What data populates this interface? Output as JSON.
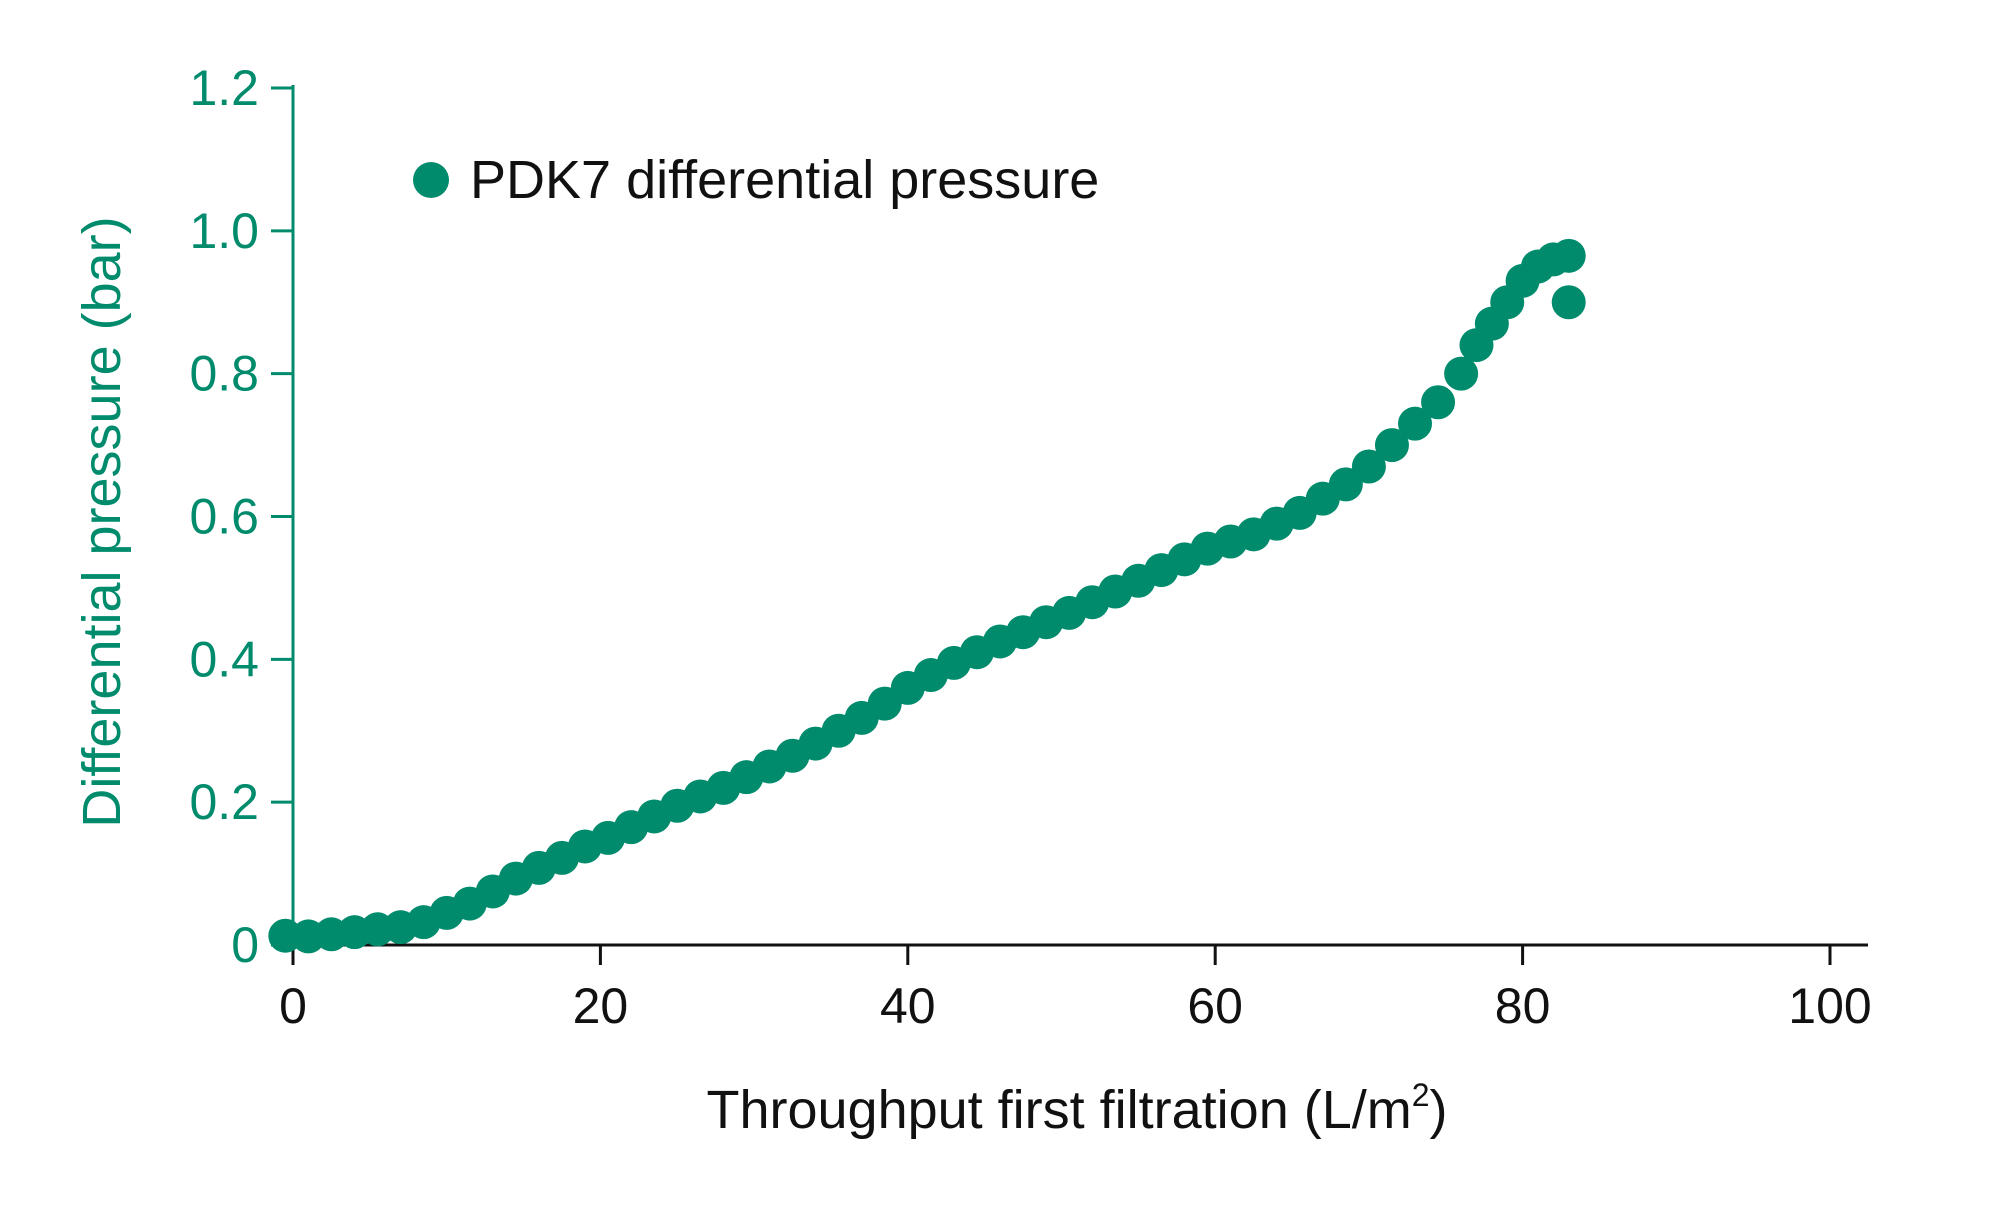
{
  "colors": {
    "series": "#008b6c",
    "y_axis": "#008b6c",
    "x_axis": "#111111"
  },
  "chart_data": {
    "type": "scatter",
    "xlabel_main": "Throughput first filtration (L/m",
    "xlabel_sup": "2",
    "xlabel_end": ")",
    "ylabel": "Differential pressure (bar)",
    "xlim": [
      0,
      100
    ],
    "ylim": [
      0,
      1.2
    ],
    "xticks": [
      0,
      20,
      40,
      60,
      80,
      100
    ],
    "xtick_labels": [
      "0",
      "20",
      "40",
      "60",
      "80",
      "100"
    ],
    "yticks": [
      0,
      0.2,
      0.4,
      0.6,
      0.8,
      1.0,
      1.2
    ],
    "ytick_labels": [
      "0",
      "0.2",
      "0.4",
      "0.6",
      "0.8",
      "1.0",
      "1.2"
    ],
    "grid": false,
    "legend_position": "top-left",
    "series": [
      {
        "name": "PDK7 differential pressure",
        "points": [
          [
            -0.5,
            0.013
          ],
          [
            1,
            0.012
          ],
          [
            2.5,
            0.015
          ],
          [
            4,
            0.018
          ],
          [
            5.5,
            0.022
          ],
          [
            7,
            0.025
          ],
          [
            8.5,
            0.032
          ],
          [
            10,
            0.045
          ],
          [
            11.5,
            0.058
          ],
          [
            13,
            0.075
          ],
          [
            14.5,
            0.093
          ],
          [
            16,
            0.108
          ],
          [
            17.5,
            0.122
          ],
          [
            19,
            0.138
          ],
          [
            20.5,
            0.15
          ],
          [
            22,
            0.165
          ],
          [
            23.5,
            0.18
          ],
          [
            25,
            0.195
          ],
          [
            26.5,
            0.208
          ],
          [
            28,
            0.22
          ],
          [
            29.5,
            0.235
          ],
          [
            31,
            0.25
          ],
          [
            32.5,
            0.265
          ],
          [
            34,
            0.282
          ],
          [
            35.5,
            0.3
          ],
          [
            37,
            0.318
          ],
          [
            38.5,
            0.338
          ],
          [
            40,
            0.36
          ],
          [
            41.5,
            0.378
          ],
          [
            43,
            0.395
          ],
          [
            44.5,
            0.41
          ],
          [
            46,
            0.425
          ],
          [
            47.5,
            0.438
          ],
          [
            49,
            0.452
          ],
          [
            50.5,
            0.465
          ],
          [
            52,
            0.48
          ],
          [
            53.5,
            0.495
          ],
          [
            55,
            0.51
          ],
          [
            56.5,
            0.525
          ],
          [
            58,
            0.54
          ],
          [
            59.5,
            0.555
          ],
          [
            61,
            0.565
          ],
          [
            62.5,
            0.575
          ],
          [
            64,
            0.59
          ],
          [
            65.5,
            0.605
          ],
          [
            67,
            0.625
          ],
          [
            68.5,
            0.645
          ],
          [
            70,
            0.67
          ],
          [
            71.5,
            0.7
          ],
          [
            73,
            0.73
          ],
          [
            74.5,
            0.76
          ],
          [
            76,
            0.8
          ],
          [
            77,
            0.84
          ],
          [
            78,
            0.87
          ],
          [
            79,
            0.9
          ],
          [
            80,
            0.93
          ],
          [
            81,
            0.95
          ],
          [
            82,
            0.96
          ],
          [
            83,
            0.965
          ],
          [
            83,
            0.9
          ]
        ]
      }
    ]
  }
}
